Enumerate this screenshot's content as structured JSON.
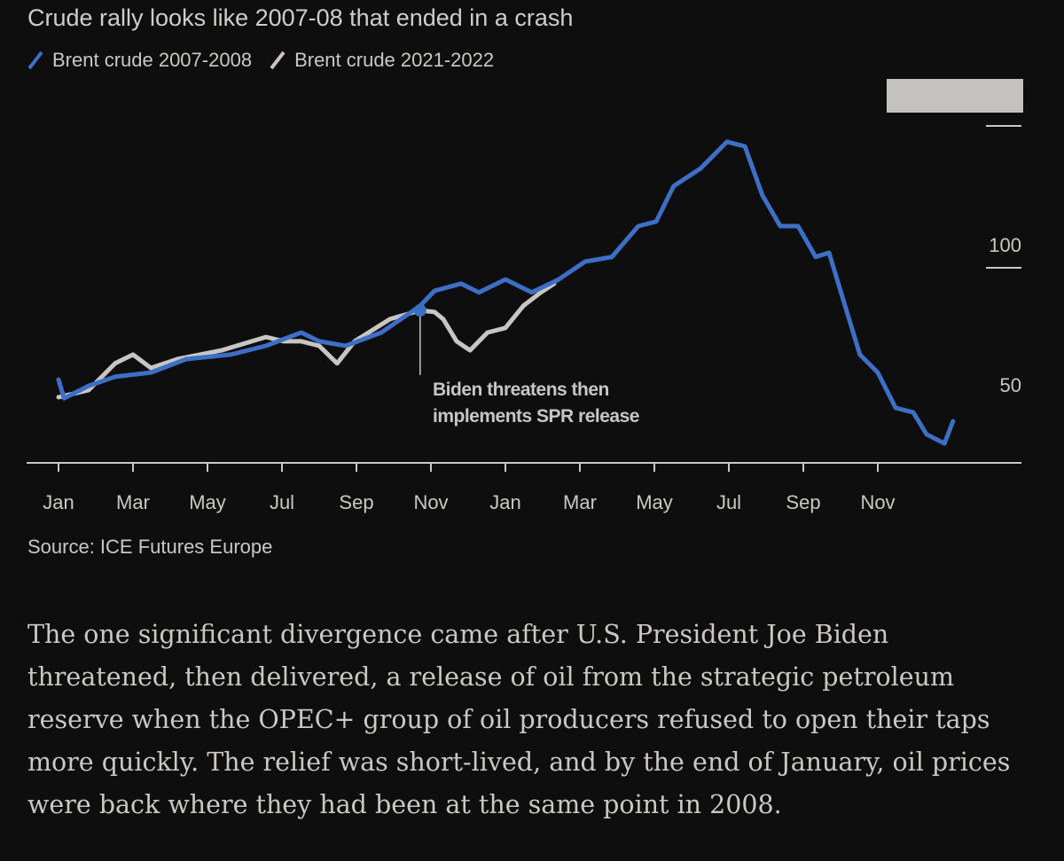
{
  "chart_data": {
    "type": "line",
    "title": "Crude rally looks like 2007-08 that ended in a crash",
    "xlabel": "",
    "ylabel": "",
    "x_unit": "months since January of first year",
    "x_ticks": [
      {
        "x": 0,
        "label": "Jan"
      },
      {
        "x": 2,
        "label": "Mar"
      },
      {
        "x": 4,
        "label": "May"
      },
      {
        "x": 6,
        "label": "Jul"
      },
      {
        "x": 8,
        "label": "Sep"
      },
      {
        "x": 10,
        "label": "Nov"
      },
      {
        "x": 12,
        "label": "Jan"
      },
      {
        "x": 14,
        "label": "Mar"
      },
      {
        "x": 16,
        "label": "May"
      },
      {
        "x": 18,
        "label": "Jul"
      },
      {
        "x": 20,
        "label": "Sep"
      },
      {
        "x": 22,
        "label": "Nov"
      }
    ],
    "y_ticks": [
      {
        "y": 50,
        "label": "50"
      },
      {
        "y": 100,
        "label": "100"
      },
      {
        "y": 150,
        "label": ""
      }
    ],
    "xlim": [
      0,
      25.5
    ],
    "ylim": [
      31,
      152
    ],
    "legend_position": "top-left",
    "series": [
      {
        "name": "Brent crude 2007-2008",
        "color": "#3d6fc7",
        "x": [
          0,
          0.15,
          0.81,
          1.52,
          2.48,
          3.43,
          4.62,
          5.57,
          6.52,
          7.0,
          7.71,
          8.67,
          9.71,
          10.1,
          10.81,
          11.29,
          12,
          12.71,
          13.43,
          14.14,
          14.86,
          15.57,
          16.05,
          16.52,
          17.24,
          17.95,
          18.43,
          18.9,
          19.38,
          19.86,
          20.33,
          20.69,
          21.05,
          21.52,
          22,
          22.48,
          22.95,
          23.31,
          23.79,
          24.02
        ],
        "y": [
          60.6,
          54,
          58.4,
          61.6,
          63.1,
          67.8,
          69.4,
          72.5,
          77.2,
          74.1,
          72.5,
          77.2,
          86.6,
          91.9,
          94.4,
          91.3,
          95.9,
          91.3,
          95.9,
          102.2,
          103.8,
          114.7,
          116.3,
          128.8,
          135,
          144.4,
          142.8,
          125.6,
          114.7,
          114.7,
          103.8,
          105.3,
          89.7,
          69.4,
          63.1,
          50.6,
          49.1,
          41.3,
          38.1,
          45.9
        ]
      },
      {
        "name": "Brent crude 2021-2022",
        "color": "#c8c6c3",
        "x": [
          0,
          0.81,
          1.52,
          2,
          2.48,
          3.19,
          4.38,
          5.57,
          6.05,
          6.52,
          7,
          7.48,
          7.95,
          8.9,
          9.71,
          10.1,
          10.33,
          10.69,
          11.05,
          11.52,
          12,
          12.48,
          12.95,
          13.31
        ],
        "y": [
          54.4,
          56.9,
          66.3,
          69.4,
          64.7,
          67.8,
          70.9,
          75.6,
          74.1,
          74.1,
          72.5,
          66.3,
          74.1,
          81.9,
          85,
          84.4,
          81.9,
          74.1,
          70.9,
          77.2,
          78.8,
          86.6,
          91.3,
          94.4
        ]
      }
    ],
    "annotations": [
      {
        "x": 9.71,
        "y": 85,
        "text": "Biden threatens then implements SPR release"
      }
    ]
  },
  "source": "Source: ICE Futures Europe",
  "paragraph": "The one significant divergence came after U.S. President Joe Biden threatened, then delivered, a release of oil from the strategic petroleum reserve when the OPEC+ group of oil producers refused to open their taps more quickly. The relief was short-lived, and by the end of January, oil prices were back where they had been at the same point in 2008."
}
